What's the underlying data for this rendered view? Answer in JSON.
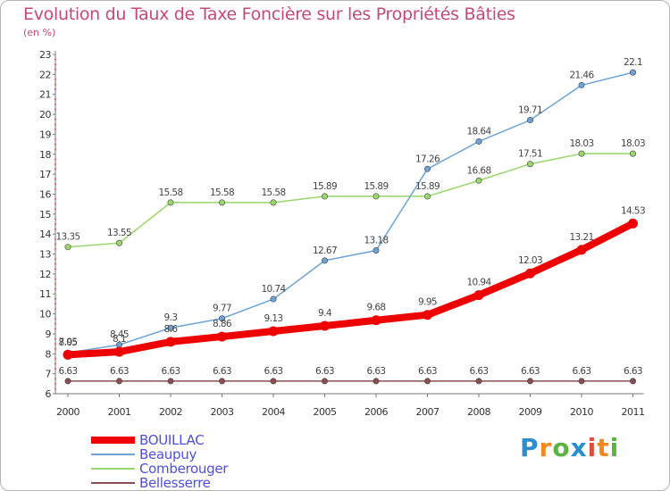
{
  "chart_data": {
    "type": "line",
    "title": "Evolution du Taux de Taxe Foncière sur les Propriétés Bâties",
    "ylabel": "(en %)",
    "xlabel": "",
    "categories": [
      "2000",
      "2001",
      "2002",
      "2003",
      "2004",
      "2005",
      "2006",
      "2007",
      "2008",
      "2009",
      "2010",
      "2011"
    ],
    "ylim": [
      6,
      23
    ],
    "yticks": [
      "6",
      "7",
      "8",
      "9",
      "10",
      "11",
      "12",
      "13",
      "14",
      "15",
      "16",
      "17",
      "18",
      "19",
      "20",
      "21",
      "22",
      "23"
    ],
    "grid": false,
    "legend_position": "bottom-left",
    "series": [
      {
        "name": "BOUILLAC",
        "color": "#ee0000",
        "values": [
          7.95,
          8.1,
          8.6,
          8.86,
          9.13,
          9.4,
          9.68,
          9.95,
          10.94,
          12.03,
          13.21,
          14.53
        ],
        "labels": [
          "7.95",
          "8.1",
          "8.6",
          "8.86",
          "9.13",
          "9.4",
          "9.68",
          "9.95",
          "10.94",
          "12.03",
          "13.21",
          "14.53"
        ]
      },
      {
        "name": "Beaupuy",
        "color": "#6ea3d6",
        "values": [
          8.05,
          8.45,
          9.3,
          9.77,
          10.74,
          12.67,
          13.18,
          17.26,
          18.64,
          19.71,
          21.46,
          22.1
        ],
        "labels": [
          "8.05",
          "8.45",
          "9.3",
          "9.77",
          "10.74",
          "12.67",
          "13.18",
          "17.26",
          "18.64",
          "19.71",
          "21.46",
          "22.1"
        ]
      },
      {
        "name": "Comberouger",
        "color": "#99d66b",
        "values": [
          13.35,
          13.55,
          15.58,
          15.58,
          15.58,
          15.89,
          15.89,
          15.89,
          16.68,
          17.51,
          18.03,
          18.03
        ],
        "labels": [
          "13.35",
          "13.55",
          "15.58",
          "15.58",
          "15.58",
          "15.89",
          "15.89",
          "15.89",
          "16.68",
          "17.51",
          "18.03",
          "18.03"
        ]
      },
      {
        "name": "Bellesserre",
        "color": "#8a4e52",
        "values": [
          6.63,
          6.63,
          6.63,
          6.63,
          6.63,
          6.63,
          6.63,
          6.63,
          6.63,
          6.63,
          6.63,
          6.63
        ],
        "labels": [
          "6.63",
          "6.63",
          "6.63",
          "6.63",
          "6.63",
          "6.63",
          "6.63",
          "6.63",
          "6.63",
          "6.63",
          "6.63",
          "6.63"
        ]
      }
    ]
  },
  "logo": {
    "text": "Proxiti",
    "letters": [
      "P",
      "r",
      "o",
      "x",
      "i",
      "t",
      "i"
    ],
    "colors": [
      "#2b8fcf",
      "#f08a1e",
      "#5db33f",
      "#2b8fcf",
      "#e24b3b",
      "#f08a1e",
      "#5db33f"
    ]
  }
}
